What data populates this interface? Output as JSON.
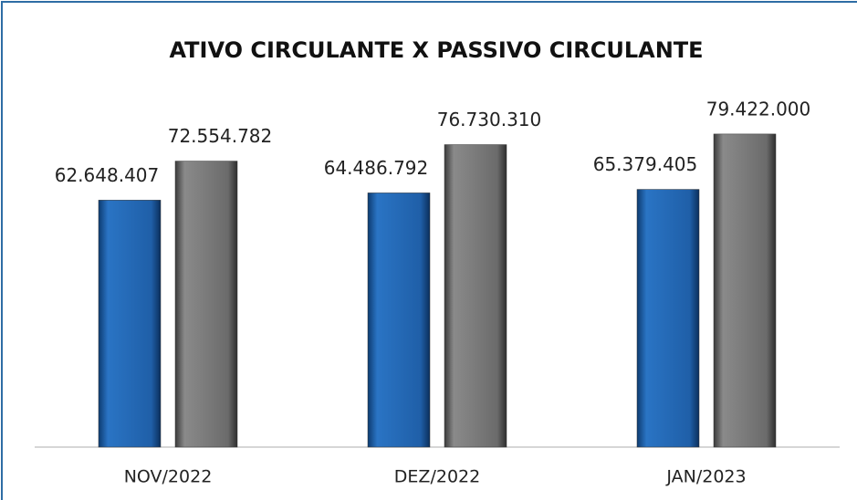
{
  "chart_data": {
    "type": "bar",
    "title": "ATIVO CIRCULANTE X PASSIVO CIRCULANTE",
    "categories": [
      "NOV/2022",
      "DEZ/2022",
      "JAN/2023"
    ],
    "series": [
      {
        "color": "#1f5fa8",
        "values": [
          62648407,
          64486792,
          65379405
        ],
        "value_labels": [
          "62.648.407",
          "64.486.792",
          "65.379.405"
        ]
      },
      {
        "color": "#6b6b6b",
        "values": [
          72554782,
          76730310,
          79422000
        ],
        "value_labels": [
          "72.554.782",
          "76.730.310",
          "79.422.000"
        ]
      }
    ],
    "ylim": [
      0,
      100000000
    ]
  }
}
